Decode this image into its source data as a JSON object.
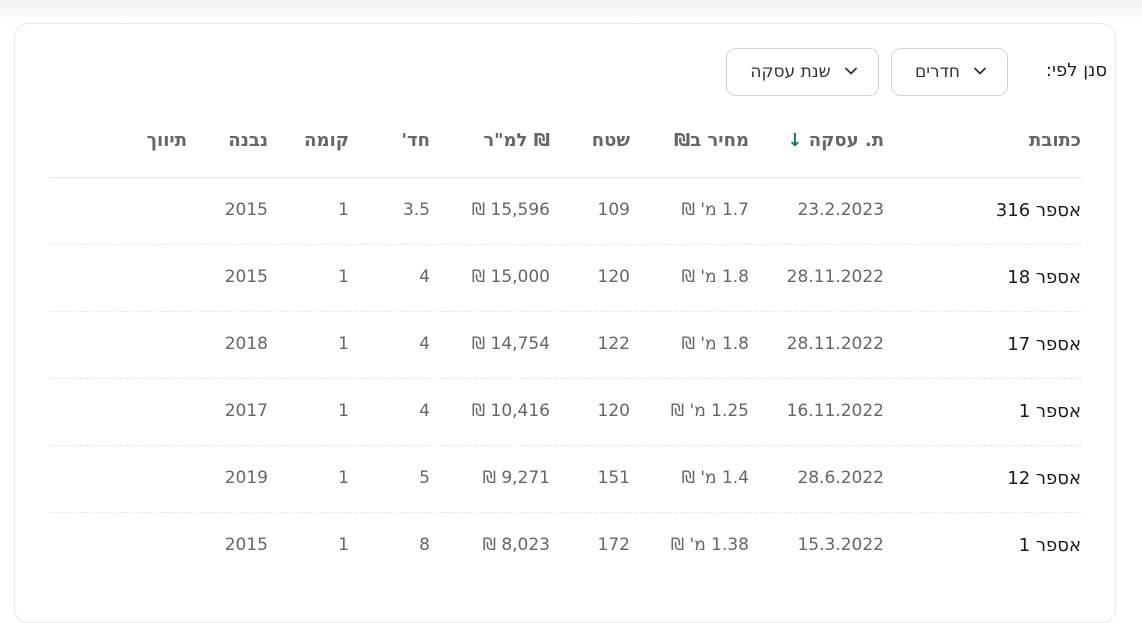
{
  "filter": {
    "label": "סנן לפי:",
    "dropdowns": [
      {
        "label": "חדרים",
        "icon": "chevron-down-icon"
      },
      {
        "label": "שנת עסקה",
        "icon": "chevron-down-icon"
      }
    ]
  },
  "table": {
    "columns": {
      "address": "כתובת",
      "date": "ת. עסקה",
      "date_sort_icon": "↓",
      "price": "מחיר ב₪",
      "area": "שטח",
      "price_per_sqm": "₪ למ\"ר",
      "rooms": "חד'",
      "floor": "קומה",
      "built": "נבנה",
      "tag": "תיווך"
    },
    "rows": [
      {
        "address": "אספר 316",
        "date": "23.2.2023",
        "price": "1.7 מ' ₪",
        "area": "109",
        "price_per_sqm": "15,596 ₪",
        "rooms": "3.5",
        "floor": "1",
        "built": "2015",
        "tag": ""
      },
      {
        "address": "אספר 18",
        "date": "28.11.2022",
        "price": "1.8 מ' ₪",
        "area": "120",
        "price_per_sqm": "15,000 ₪",
        "rooms": "4",
        "floor": "1",
        "built": "2015",
        "tag": ""
      },
      {
        "address": "אספר 17",
        "date": "28.11.2022",
        "price": "1.8 מ' ₪",
        "area": "122",
        "price_per_sqm": "14,754 ₪",
        "rooms": "4",
        "floor": "1",
        "built": "2018",
        "tag": ""
      },
      {
        "address": "אספר 1",
        "date": "16.11.2022",
        "price": "1.25 מ' ₪",
        "area": "120",
        "price_per_sqm": "10,416 ₪",
        "rooms": "4",
        "floor": "1",
        "built": "2017",
        "tag": ""
      },
      {
        "address": "אספר 12",
        "date": "28.6.2022",
        "price": "1.4 מ' ₪",
        "area": "151",
        "price_per_sqm": "9,271 ₪",
        "rooms": "5",
        "floor": "1",
        "built": "2019",
        "tag": ""
      },
      {
        "address": "אספר 1",
        "date": "15.3.2022",
        "price": "1.38 מ' ₪",
        "area": "172",
        "price_per_sqm": "8,023 ₪",
        "rooms": "8",
        "floor": "1",
        "built": "2015",
        "tag": ""
      }
    ]
  },
  "colors": {
    "accent": "#1a7a6e",
    "header_text": "#666666",
    "border": "#e4e4e4"
  }
}
